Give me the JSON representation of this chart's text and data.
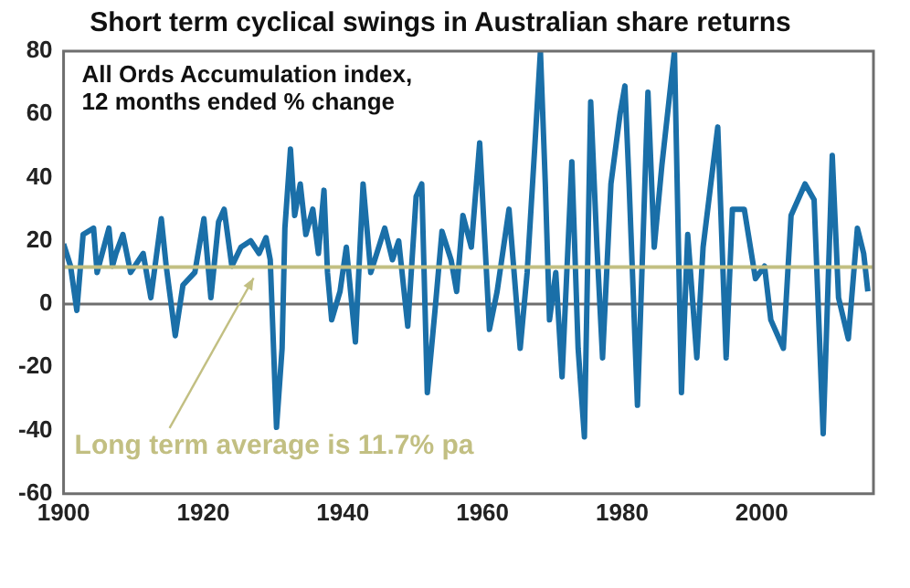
{
  "chart_data": {
    "type": "line",
    "title": "Short term cyclical swings in Australian share returns",
    "annotations": [
      "All Ords Accumulation index,\n12 months ended % change"
    ],
    "xlim": [
      1900,
      2016
    ],
    "xticks": [
      1900,
      1920,
      1940,
      1960,
      1980,
      2000
    ],
    "ylim": [
      -60,
      80
    ],
    "yticks": [
      -60,
      -40,
      -20,
      0,
      20,
      40,
      60,
      80
    ],
    "grid": false,
    "legend": false,
    "marker": "none",
    "line_style": "solid",
    "ref_lines": [
      {
        "axis": "y",
        "value": 0,
        "color": "#6e6e6e"
      },
      {
        "axis": "y",
        "value": 11.7,
        "label": "Long term average is 11.7% pa",
        "color": "#c2bf82"
      }
    ],
    "series": [
      {
        "color": "#1a6fa8",
        "x": [
          1900,
          1901,
          1901.9,
          1902.8,
          1904.3,
          1904.8,
          1906.5,
          1907,
          1907.5,
          1908.5,
          1909.6,
          1911.4,
          1912.5,
          1914,
          1914.7,
          1916,
          1917.1,
          1918.8,
          1920.1,
          1921.1,
          1922.2,
          1923,
          1924.1,
          1925.4,
          1926.8,
          1928,
          1929,
          1929.6,
          1930.5,
          1931.3,
          1931.7,
          1932.5,
          1933.1,
          1933.9,
          1934.7,
          1935.7,
          1936.5,
          1937.3,
          1937.8,
          1938.4,
          1939.6,
          1940.5,
          1941.8,
          1942.9,
          1944,
          1946,
          1947.1,
          1948,
          1949.3,
          1950.5,
          1951.3,
          1952.1,
          1953.2,
          1954.2,
          1955.5,
          1956.3,
          1957.2,
          1958.4,
          1959.6,
          1961,
          1962.1,
          1963.8,
          1965.4,
          1966.4,
          1967.5,
          1968.3,
          1969,
          1969.6,
          1970.5,
          1971.4,
          1972.8,
          1973.7,
          1974.6,
          1975.5,
          1976.4,
          1977.2,
          1978.4,
          1979.7,
          1980.4,
          1981,
          1982.2,
          1983.7,
          1984.6,
          1985.7,
          1987.5,
          1988.5,
          1989.4,
          1990.7,
          1991.6,
          1993.7,
          1994.9,
          1995.8,
          1997.5,
          1999.1,
          2000.4,
          2001.3,
          2003.1,
          2004.2,
          2006.2,
          2007.5,
          2008.8,
          2010.1,
          2011,
          2012.4,
          2013.7,
          2014.6,
          2015.2
        ],
        "values": [
          19,
          12,
          -2,
          22,
          24,
          10,
          24,
          12,
          16,
          22,
          10,
          16,
          2,
          27,
          12,
          -10,
          6,
          10,
          27,
          2,
          26,
          30,
          12,
          18,
          20,
          16,
          21,
          14,
          -39,
          -14,
          24,
          49,
          28,
          38,
          22,
          30,
          16,
          36,
          10,
          -5,
          4,
          18,
          -12,
          38,
          10,
          24,
          14,
          20,
          -7,
          34,
          38,
          -28,
          -2,
          23,
          14,
          4,
          28,
          18,
          51,
          -8,
          4,
          30,
          -14,
          10,
          50,
          80,
          38,
          -5,
          10,
          -23,
          45,
          -14,
          -42,
          64,
          18,
          -17,
          38,
          60,
          69,
          38,
          -32,
          67,
          18,
          44,
          80,
          -28,
          22,
          -17,
          18,
          56,
          -17,
          30,
          30,
          8,
          12,
          -5,
          -14,
          28,
          38,
          33,
          -41,
          47,
          2,
          -11,
          24,
          16,
          4
        ]
      }
    ]
  }
}
